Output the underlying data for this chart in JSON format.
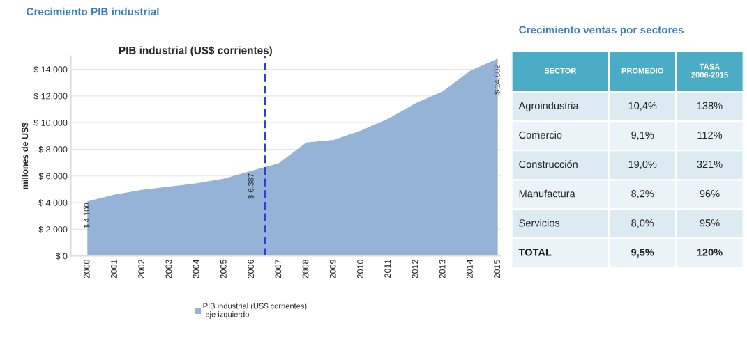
{
  "chart_data": [
    {
      "type": "area",
      "title": "Crecimiento PIB industrial",
      "subtitle": "PIB industrial (US$ corrientes)",
      "ylabel": "millones de US$",
      "x": [
        2000,
        2001,
        2002,
        2003,
        2004,
        2005,
        2006,
        2007,
        2008,
        2009,
        2010,
        2011,
        2012,
        2013,
        2014,
        2015
      ],
      "series": [
        {
          "name": "PIB industrial (US$ corrientes)\n-eje izquierdo-",
          "color": "#95b3d7",
          "values": [
            4100,
            4600,
            4950,
            5200,
            5450,
            5800,
            6387,
            6950,
            8500,
            8700,
            9400,
            10300,
            11450,
            12350,
            13900,
            14802
          ],
          "value_labels": [
            "$ 4.100",
            null,
            null,
            null,
            null,
            null,
            "$ 6.387",
            null,
            null,
            null,
            null,
            null,
            null,
            null,
            null,
            "$ 14.802"
          ]
        }
      ],
      "xlim": [
        1999.4,
        2015.1
      ],
      "xticks": [
        2000,
        2001,
        2002,
        2003,
        2004,
        2005,
        2006,
        2007,
        2008,
        2009,
        2010,
        2011,
        2012,
        2013,
        2014,
        2015
      ],
      "ylim": [
        0,
        15000
      ],
      "yticks": [
        {
          "value": 0,
          "label": "$ 0"
        },
        {
          "value": 2000,
          "label": "$ 2.000"
        },
        {
          "value": 4000,
          "label": "$ 4.000"
        },
        {
          "value": 6000,
          "label": "$ 6.000"
        },
        {
          "value": 8000,
          "label": "$ 8.000"
        },
        {
          "value": 10000,
          "label": "$ 10.000"
        },
        {
          "value": 12000,
          "label": "$ 12.000"
        },
        {
          "value": 14000,
          "label": "$ 14.000"
        }
      ],
      "ref_lines": [
        {
          "axis": "x",
          "value": 2006.5,
          "color": "#2c3fd9",
          "line_style": "dashed"
        }
      ],
      "grid": "y",
      "legend": "bottom"
    },
    {
      "type": "other",
      "title": "Crecimiento ventas por sectores",
      "annotations": [
        "SECTOR",
        "PROMEDIO",
        "TASA\n2006-2015",
        "Agroindustria",
        "10,4%",
        "138%",
        "Comercio",
        "9,1%",
        "112%",
        "Construcción",
        "19,0%",
        "321%",
        "Manufactura",
        "8,2%",
        "96%",
        "Servicios",
        "8,0%",
        "95%",
        "TOTAL",
        "9,5%",
        "120%"
      ]
    }
  ]
}
